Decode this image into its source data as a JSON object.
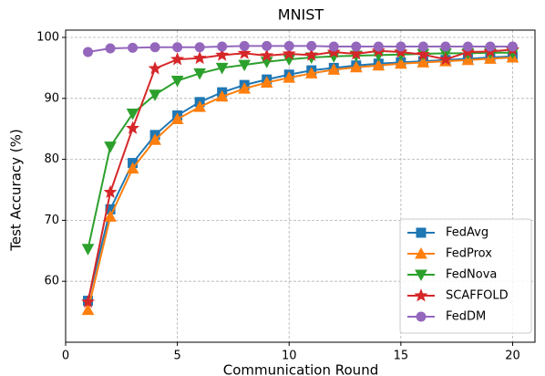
{
  "chart_data": {
    "type": "line",
    "title": "MNIST",
    "xlabel": "Communication Round",
    "ylabel": "Test Accuracy (%)",
    "x": [
      1,
      2,
      3,
      4,
      5,
      6,
      7,
      8,
      9,
      10,
      11,
      12,
      13,
      14,
      15,
      16,
      17,
      18,
      19,
      20
    ],
    "series": [
      {
        "name": "FedAvg",
        "color": "#1f77b4",
        "marker": "square",
        "values": [
          56.8,
          71.8,
          79.4,
          84.0,
          87.2,
          89.4,
          91.0,
          92.2,
          93.1,
          93.9,
          94.6,
          95.0,
          95.4,
          95.7,
          95.9,
          96.1,
          96.3,
          96.5,
          96.7,
          96.9
        ]
      },
      {
        "name": "FedProx",
        "color": "#ff7f0e",
        "marker": "triangle-up",
        "values": [
          55.3,
          70.6,
          78.5,
          83.2,
          86.6,
          88.6,
          90.3,
          91.6,
          92.6,
          93.4,
          94.1,
          94.7,
          95.1,
          95.4,
          95.7,
          95.9,
          96.1,
          96.3,
          96.5,
          96.7
        ]
      },
      {
        "name": "FedNova",
        "color": "#2ca02c",
        "marker": "triangle-down",
        "values": [
          65.3,
          82.1,
          87.5,
          90.6,
          92.9,
          94.1,
          95.0,
          95.5,
          96.0,
          96.4,
          96.7,
          96.9,
          97.0,
          97.1,
          97.2,
          97.3,
          97.4,
          97.4,
          97.5,
          97.5
        ]
      },
      {
        "name": "SCAFFOLD",
        "color": "#d62728",
        "marker": "star",
        "values": [
          56.6,
          74.6,
          85.1,
          94.9,
          96.4,
          96.6,
          97.1,
          97.4,
          97.0,
          97.3,
          97.1,
          97.6,
          97.3,
          97.8,
          97.6,
          97.2,
          96.4,
          97.6,
          97.7,
          98.0
        ]
      },
      {
        "name": "FedDM",
        "color": "#9467bd",
        "marker": "circle",
        "values": [
          97.6,
          98.2,
          98.3,
          98.4,
          98.4,
          98.4,
          98.5,
          98.6,
          98.6,
          98.6,
          98.6,
          98.5,
          98.5,
          98.5,
          98.5,
          98.5,
          98.5,
          98.5,
          98.5,
          98.5
        ]
      }
    ],
    "xlim": [
      0,
      21
    ],
    "xticks": [
      0,
      5,
      10,
      15,
      20
    ],
    "ylim": [
      50,
      101.2
    ],
    "yticks": [
      60,
      70,
      80,
      90,
      100
    ],
    "grid": true,
    "legend": "lower right"
  }
}
